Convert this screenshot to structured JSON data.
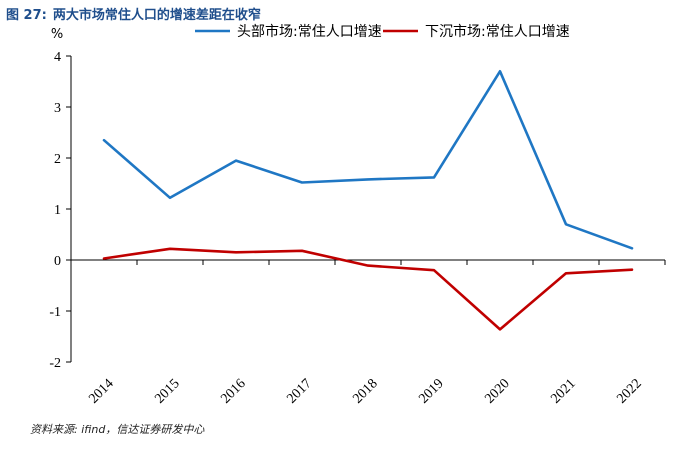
{
  "figure": {
    "number": "图 27:",
    "title": "两大市场常住人口的增速差距在收窄",
    "source": "资料来源: ifind，信达证券研发中心"
  },
  "chart_data": {
    "type": "line",
    "ylabel": "%",
    "x": [
      "2014",
      "2015",
      "2016",
      "2017",
      "2018",
      "2019",
      "2020",
      "2021",
      "2022"
    ],
    "ylim": [
      -2,
      4
    ],
    "yticks": [
      -2,
      -1,
      0,
      1,
      2,
      3,
      4
    ],
    "grid": false,
    "legend_position": "top",
    "series": [
      {
        "name": "头部市场:常住人口增速",
        "color": "#1f77c4",
        "values": [
          2.35,
          1.22,
          1.95,
          1.52,
          1.58,
          1.62,
          3.7,
          0.7,
          0.23
        ]
      },
      {
        "name": "下沉市场:常住人口增速",
        "color": "#c00000",
        "values": [
          0.03,
          0.22,
          0.15,
          0.18,
          -0.11,
          -0.2,
          -1.36,
          -0.26,
          -0.19
        ]
      }
    ]
  }
}
